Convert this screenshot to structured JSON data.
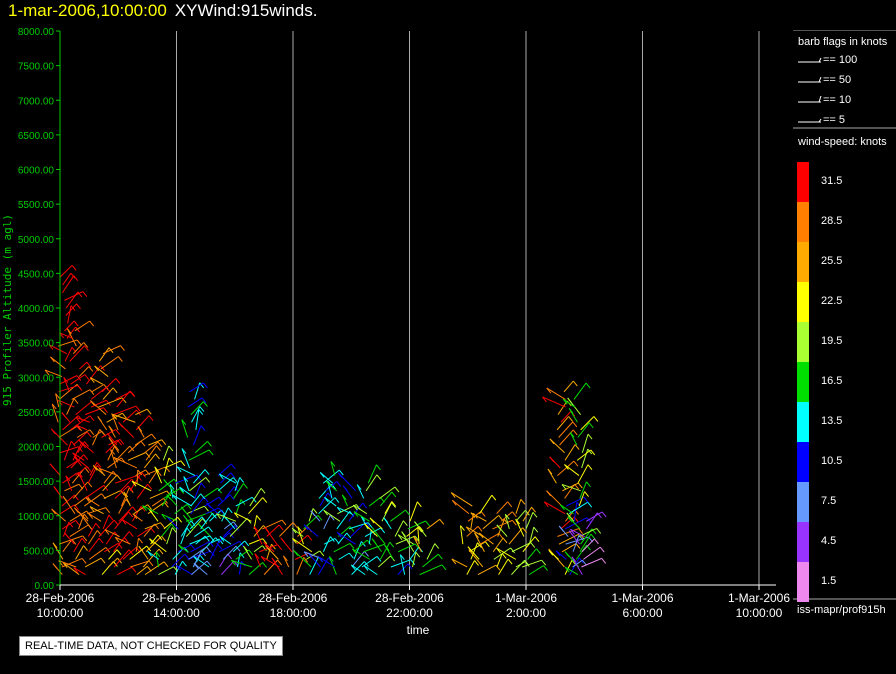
{
  "header": {
    "date": "1-mar-2006,10:00:00",
    "title": "XYWind:915winds."
  },
  "footer": {
    "qc_note": "REAL-TIME DATA, NOT CHECKED FOR QUALITY",
    "source": "iss-mapr/prof915h"
  },
  "legend": {
    "barb_title": "barb flags in knots",
    "barb_entries": [
      "== 100",
      "== 50",
      "== 10",
      "== 5"
    ],
    "speed_title": "wind-speed: knots",
    "speed_bins": [
      {
        "label": "31.5",
        "color": "#ff0000"
      },
      {
        "label": "28.5",
        "color": "#ff7f00"
      },
      {
        "label": "25.5",
        "color": "#ffaa00"
      },
      {
        "label": "22.5",
        "color": "#ffff00"
      },
      {
        "label": "19.5",
        "color": "#aaff33"
      },
      {
        "label": "16.5",
        "color": "#00dd00"
      },
      {
        "label": "13.5",
        "color": "#00ffff"
      },
      {
        "label": "10.5",
        "color": "#0000ff"
      },
      {
        "label": "7.5",
        "color": "#6699ff"
      },
      {
        "label": "4.5",
        "color": "#9933ff"
      },
      {
        "label": "1.5",
        "color": "#ee88ee"
      }
    ]
  },
  "chart_data": {
    "type": "scatter",
    "title": "1-mar-2006,10:00:00  XYWind:915winds.",
    "xlabel": "time",
    "ylabel": "915 Profiler Altitude (m agl)",
    "ylim": [
      0,
      8000
    ],
    "xlim_hours": [
      10,
      34
    ],
    "grid": "vertical lines at x ticks",
    "y_ticks": [
      "0.00",
      "500.00",
      "1000.00",
      "1500.00",
      "2000.00",
      "2500.00",
      "3000.00",
      "3500.00",
      "4000.00",
      "4500.00",
      "5000.00",
      "5500.00",
      "6000.00",
      "6500.00",
      "7000.00",
      "7500.00",
      "8000.00"
    ],
    "x_ticks": [
      {
        "date": "28-Feb-2006",
        "time": "10:00:00"
      },
      {
        "date": "28-Feb-2006",
        "time": "14:00:00"
      },
      {
        "date": "28-Feb-2006",
        "time": "18:00:00"
      },
      {
        "date": "28-Feb-2006",
        "time": "22:00:00"
      },
      {
        "date": "1-Mar-2006",
        "time": "2:00:00"
      },
      {
        "date": "1-Mar-2006",
        "time": "6:00:00"
      },
      {
        "date": "1-Mar-2006",
        "time": "10:00:00"
      }
    ],
    "profiles": [
      {
        "t": 10.1,
        "top": 4500,
        "spd": 31.5
      },
      {
        "t": 10.5,
        "top": 3700,
        "spd": 31.5
      },
      {
        "t": 11.0,
        "top": 3000,
        "spd": 31.5
      },
      {
        "t": 11.5,
        "top": 3400,
        "spd": 28.5
      },
      {
        "t": 12.0,
        "top": 2700,
        "spd": 31.5
      },
      {
        "t": 12.5,
        "top": 2500,
        "spd": 28.5
      },
      {
        "t": 13.0,
        "top": 2200,
        "spd": 25.5
      },
      {
        "t": 13.5,
        "top": 1800,
        "spd": 19.5
      },
      {
        "t": 14.0,
        "top": 1500,
        "spd": 13.5
      },
      {
        "t": 14.5,
        "top": 1400,
        "spd": 16.5
      },
      {
        "t": 15.0,
        "top": 1300,
        "spd": 13.5
      },
      {
        "t": 15.5,
        "top": 1600,
        "spd": 10.5
      },
      {
        "t": 16.0,
        "top": 1500,
        "spd": 16.5
      },
      {
        "t": 16.5,
        "top": 1200,
        "spd": 22.5
      },
      {
        "t": 17.0,
        "top": 900,
        "spd": 31.5
      },
      {
        "t": 17.5,
        "top": 800,
        "spd": 31.5
      },
      {
        "t": 18.0,
        "top": 700,
        "spd": 31.5
      },
      {
        "t": 18.5,
        "top": 1000,
        "spd": 19.5
      },
      {
        "t": 19.0,
        "top": 1500,
        "spd": 10.5
      },
      {
        "t": 19.5,
        "top": 1600,
        "spd": 16.5
      },
      {
        "t": 20.0,
        "top": 1400,
        "spd": 13.5
      },
      {
        "t": 20.5,
        "top": 1500,
        "spd": 16.5
      },
      {
        "t": 21.0,
        "top": 1300,
        "spd": 19.5
      },
      {
        "t": 21.5,
        "top": 1000,
        "spd": 16.5
      },
      {
        "t": 22.0,
        "top": 1000,
        "spd": 19.5
      },
      {
        "t": 22.5,
        "top": 900,
        "spd": 22.5
      },
      {
        "t": 24.0,
        "top": 1200,
        "spd": 25.5
      },
      {
        "t": 24.5,
        "top": 1100,
        "spd": 25.5
      },
      {
        "t": 25.0,
        "top": 1050,
        "spd": 25.5
      },
      {
        "t": 25.5,
        "top": 1050,
        "spd": 22.5
      },
      {
        "t": 26.0,
        "top": 1000,
        "spd": 22.5
      },
      {
        "t": 27.2,
        "top": 2800,
        "spd": 28.5
      },
      {
        "t": 27.5,
        "top": 1200,
        "spd": 10.5
      },
      {
        "t": 27.8,
        "top": 2700,
        "spd": 19.5
      },
      {
        "t": 28.0,
        "top": 1000,
        "spd": 4.5
      },
      {
        "t": 14.5,
        "top": 2800,
        "spd": 13.5
      }
    ]
  }
}
